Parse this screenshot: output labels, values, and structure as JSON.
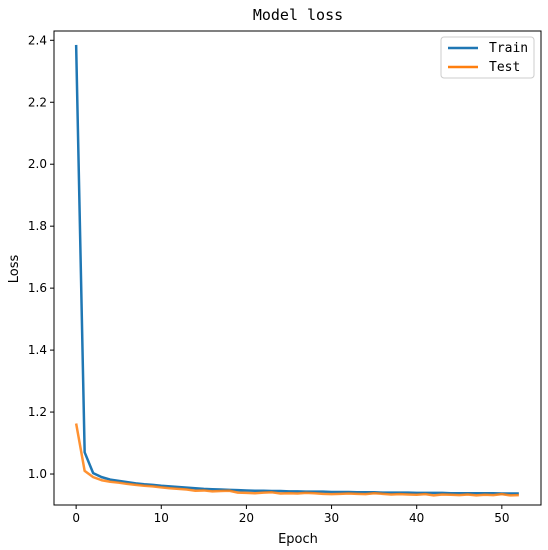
{
  "chart_data": {
    "type": "line",
    "title": "Model loss",
    "xlabel": "Epoch",
    "ylabel": "Loss",
    "xlim": [
      -2.6,
      54.6
    ],
    "ylim": [
      0.9,
      2.43
    ],
    "xticks": [
      0,
      10,
      20,
      30,
      40,
      50
    ],
    "yticks": [
      1.0,
      1.2,
      1.4,
      1.6,
      1.8,
      2.0,
      2.2,
      2.4
    ],
    "xtick_labels": [
      "0",
      "10",
      "20",
      "30",
      "40",
      "50"
    ],
    "ytick_labels": [
      "1.0",
      "1.2",
      "1.4",
      "1.6",
      "1.8",
      "2.0",
      "2.2",
      "2.4"
    ],
    "grid": false,
    "legend_position": "top-right",
    "legend": [
      "Train",
      "Test"
    ],
    "x": [
      0,
      1,
      2,
      3,
      4,
      5,
      6,
      7,
      8,
      9,
      10,
      11,
      12,
      13,
      14,
      15,
      16,
      17,
      18,
      19,
      20,
      21,
      22,
      23,
      24,
      25,
      26,
      27,
      28,
      29,
      30,
      31,
      32,
      33,
      34,
      35,
      36,
      37,
      38,
      39,
      40,
      41,
      42,
      43,
      44,
      45,
      46,
      47,
      48,
      49,
      50,
      51,
      52
    ],
    "series": [
      {
        "name": "Train",
        "color": "#1f77b4",
        "values": [
          2.385,
          1.07,
          1.003,
          0.99,
          0.982,
          0.978,
          0.974,
          0.97,
          0.967,
          0.965,
          0.962,
          0.96,
          0.958,
          0.956,
          0.954,
          0.952,
          0.951,
          0.95,
          0.949,
          0.948,
          0.947,
          0.946,
          0.946,
          0.945,
          0.945,
          0.944,
          0.944,
          0.943,
          0.943,
          0.943,
          0.942,
          0.942,
          0.942,
          0.941,
          0.941,
          0.941,
          0.94,
          0.94,
          0.94,
          0.94,
          0.939,
          0.939,
          0.939,
          0.939,
          0.938,
          0.938,
          0.938,
          0.938,
          0.938,
          0.938,
          0.937,
          0.937,
          0.937
        ]
      },
      {
        "name": "Test",
        "color": "#ff7f0e",
        "values": [
          1.163,
          1.01,
          0.99,
          0.98,
          0.975,
          0.972,
          0.968,
          0.965,
          0.962,
          0.96,
          0.957,
          0.954,
          0.952,
          0.95,
          0.946,
          0.947,
          0.944,
          0.945,
          0.946,
          0.94,
          0.939,
          0.938,
          0.94,
          0.941,
          0.937,
          0.938,
          0.937,
          0.939,
          0.938,
          0.936,
          0.935,
          0.936,
          0.937,
          0.936,
          0.935,
          0.938,
          0.936,
          0.934,
          0.935,
          0.934,
          0.933,
          0.935,
          0.931,
          0.934,
          0.933,
          0.932,
          0.934,
          0.931,
          0.933,
          0.932,
          0.935,
          0.931,
          0.932
        ]
      }
    ]
  }
}
